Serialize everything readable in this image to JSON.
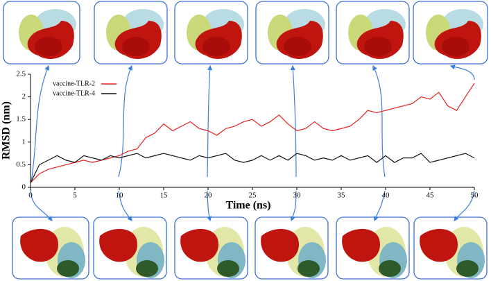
{
  "chart_data": {
    "type": "line",
    "xlabel": "Time (ns)",
    "ylabel": "RMSD (nm)",
    "x": [
      0,
      1,
      2,
      3,
      4,
      5,
      6,
      7,
      8,
      9,
      10,
      11,
      12,
      13,
      14,
      15,
      16,
      17,
      18,
      19,
      20,
      21,
      22,
      23,
      24,
      25,
      26,
      27,
      28,
      29,
      30,
      31,
      32,
      33,
      34,
      35,
      36,
      37,
      38,
      39,
      40,
      41,
      42,
      43,
      44,
      45,
      46,
      47,
      48,
      49,
      50
    ],
    "series": [
      {
        "name": "vaccine-TLR-2",
        "color": "#e8221d",
        "values": [
          0.1,
          0.3,
          0.4,
          0.45,
          0.5,
          0.55,
          0.6,
          0.55,
          0.6,
          0.65,
          0.7,
          0.8,
          0.85,
          1.1,
          1.2,
          1.4,
          1.25,
          1.35,
          1.45,
          1.3,
          1.25,
          1.15,
          1.3,
          1.35,
          1.45,
          1.5,
          1.35,
          1.45,
          1.6,
          1.4,
          1.25,
          1.3,
          1.45,
          1.3,
          1.25,
          1.3,
          1.35,
          1.5,
          1.7,
          1.65,
          1.7,
          1.75,
          1.8,
          1.85,
          2.0,
          1.95,
          2.1,
          1.8,
          1.7,
          2.0,
          2.3
        ]
      },
      {
        "name": "vaccine-TLR-4",
        "color": "#111111",
        "values": [
          0.1,
          0.5,
          0.6,
          0.7,
          0.6,
          0.55,
          0.7,
          0.65,
          0.6,
          0.7,
          0.65,
          0.7,
          0.75,
          0.65,
          0.7,
          0.75,
          0.7,
          0.65,
          0.6,
          0.7,
          0.65,
          0.7,
          0.75,
          0.6,
          0.55,
          0.6,
          0.7,
          0.6,
          0.7,
          0.6,
          0.75,
          0.7,
          0.6,
          0.65,
          0.6,
          0.7,
          0.6,
          0.65,
          0.7,
          0.55,
          0.7,
          0.55,
          0.65,
          0.65,
          0.75,
          0.55,
          0.6,
          0.65,
          0.7,
          0.75,
          0.65
        ]
      }
    ],
    "xlim": [
      0,
      50
    ],
    "xticks": [
      0,
      5,
      10,
      15,
      20,
      25,
      30,
      35,
      40,
      45,
      50
    ],
    "ylim": [
      0,
      2.5
    ],
    "yticks": [
      0,
      0.5,
      1,
      1.5,
      2,
      2.5
    ],
    "grid": false,
    "legend": "upper left"
  }
}
